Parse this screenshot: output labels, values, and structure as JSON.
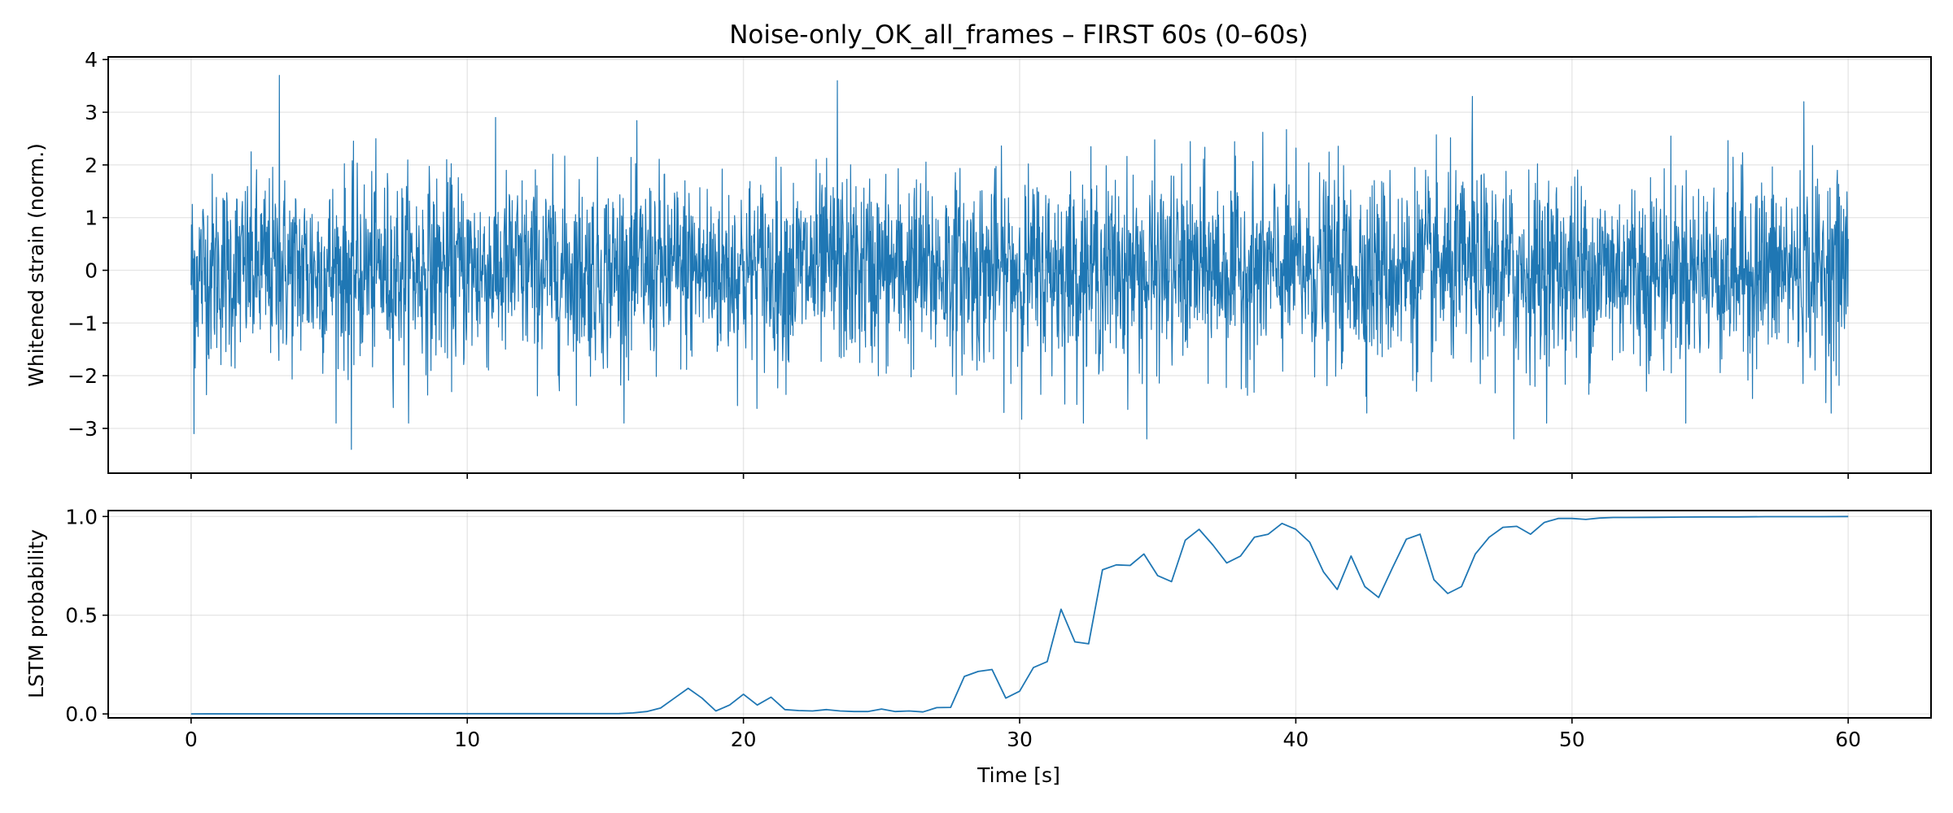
{
  "chart_data": [
    {
      "type": "line",
      "title": "Noise-only_OK_all_frames – FIRST 60s (0–60s)",
      "xlabel": "",
      "ylabel": "Whitened strain (norm.)",
      "xlim": [
        -3,
        63
      ],
      "ylim": [
        -3.85,
        4.05
      ],
      "xticks": [
        0,
        10,
        20,
        30,
        40,
        50,
        60
      ],
      "xtick_labels_shown": false,
      "yticks": [
        -3,
        -2,
        -1,
        0,
        1,
        2,
        3,
        4
      ],
      "ytick_labels": [
        "−3",
        "−2",
        "−1",
        "0",
        "1",
        "2",
        "3",
        "4"
      ],
      "grid": true,
      "legend": "none",
      "series": [
        {
          "color": "#1f77b4",
          "description_of_values": "dense white-noise trace sampled over 0–60 s, mean ≈ 0, std ≈ 0.9, approximate min −3.4 near 5.8 s, approximate max 3.7 near 3.2 s",
          "x_range": [
            0,
            60
          ],
          "notable_points": [
            {
              "x": 3.2,
              "y": 3.7
            },
            {
              "x": 5.8,
              "y": -3.4
            },
            {
              "x": 23.4,
              "y": 3.6
            },
            {
              "x": 34.6,
              "y": -3.2
            },
            {
              "x": 46.4,
              "y": 3.3
            },
            {
              "x": 47.9,
              "y": -3.2
            },
            {
              "x": 58.4,
              "y": 3.2
            },
            {
              "x": 0.1,
              "y": -3.1
            }
          ]
        }
      ]
    },
    {
      "type": "line",
      "title": "",
      "xlabel": "Time [s]",
      "ylabel": "LSTM probability",
      "xlim": [
        -3,
        63
      ],
      "ylim": [
        -0.02,
        1.03
      ],
      "xticks": [
        0,
        10,
        20,
        30,
        40,
        50,
        60
      ],
      "xtick_labels": [
        "0",
        "10",
        "20",
        "30",
        "40",
        "50",
        "60"
      ],
      "yticks": [
        0.0,
        0.5,
        1.0
      ],
      "ytick_labels": [
        "0.0",
        "0.5",
        "1.0"
      ],
      "grid": true,
      "legend": "none",
      "series": [
        {
          "color": "#1f77b4",
          "x": [
            0,
            15.5,
            16,
            16.5,
            17,
            17.5,
            18,
            18.5,
            19,
            19.5,
            20,
            20.5,
            21,
            21.5,
            22,
            22.5,
            23,
            23.5,
            24,
            24.5,
            25,
            25.5,
            26,
            26.5,
            27,
            27.5,
            28,
            28.5,
            29,
            29.5,
            30,
            30.5,
            31,
            31.5,
            32,
            32.5,
            33,
            33.5,
            34,
            34.5,
            35,
            35.5,
            36,
            36.5,
            37,
            37.5,
            38,
            38.5,
            39,
            39.5,
            40,
            40.5,
            41,
            41.5,
            42,
            42.5,
            43,
            43.5,
            44,
            44.5,
            45,
            45.5,
            46,
            46.5,
            47,
            47.5,
            48,
            48.5,
            49,
            49.5,
            50,
            50.5,
            51,
            51.5,
            52,
            53,
            54,
            55,
            56,
            57,
            58,
            59,
            60
          ],
          "values": [
            0.0,
            0.002,
            0.005,
            0.012,
            0.03,
            0.08,
            0.13,
            0.08,
            0.015,
            0.045,
            0.1,
            0.045,
            0.085,
            0.022,
            0.017,
            0.015,
            0.022,
            0.015,
            0.012,
            0.012,
            0.025,
            0.012,
            0.015,
            0.01,
            0.032,
            0.033,
            0.19,
            0.215,
            0.225,
            0.08,
            0.115,
            0.235,
            0.265,
            0.53,
            0.365,
            0.355,
            0.73,
            0.755,
            0.752,
            0.81,
            0.7,
            0.67,
            0.88,
            0.935,
            0.855,
            0.765,
            0.8,
            0.895,
            0.91,
            0.965,
            0.935,
            0.87,
            0.72,
            0.63,
            0.8,
            0.645,
            0.59,
            0.74,
            0.885,
            0.91,
            0.68,
            0.61,
            0.645,
            0.81,
            0.895,
            0.945,
            0.95,
            0.91,
            0.97,
            0.99,
            0.99,
            0.985,
            0.992,
            0.995,
            0.995,
            0.996,
            0.997,
            0.998,
            0.998,
            0.999,
            0.999,
            0.999,
            1.0
          ]
        }
      ]
    }
  ]
}
